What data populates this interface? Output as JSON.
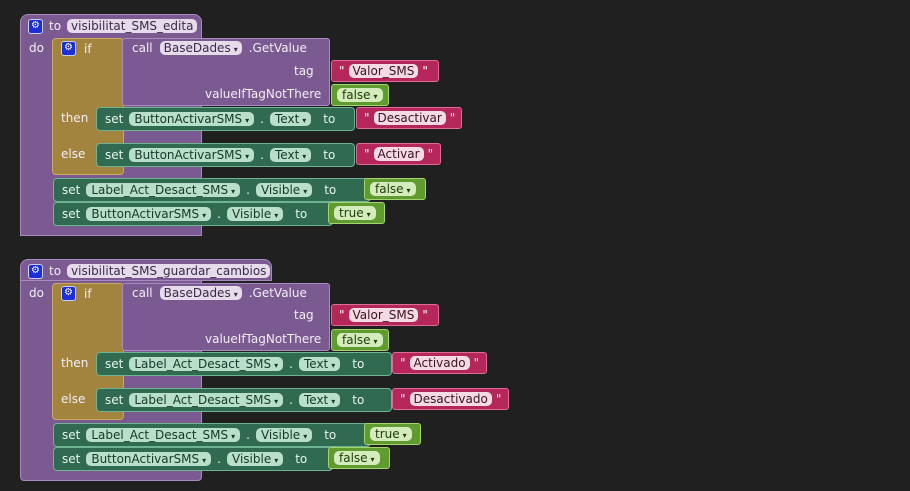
{
  "procedures": [
    {
      "to_label": "to",
      "name": "visibilitat_SMS_edita",
      "do_label": "do",
      "if_block": {
        "if_label": "if",
        "then_label": "then",
        "else_label": "else",
        "condition": {
          "call_label": "call",
          "component": "BaseDades",
          "method": ".GetValue",
          "tag_label": "tag",
          "tag_value": "Valor_SMS",
          "valueIfTagNotThere_label": "valueIfTagNotThere",
          "valueIfTagNotThere_value": "false"
        },
        "then_set": {
          "set_label": "set",
          "component": "ButtonActivarSMS",
          "property": "Text",
          "to_label": "to",
          "value": "Desactivar"
        },
        "else_set": {
          "set_label": "set",
          "component": "ButtonActivarSMS",
          "property": "Text",
          "to_label": "to",
          "value": "Activar"
        }
      },
      "sets": [
        {
          "set_label": "set",
          "component": "Label_Act_Desact_SMS",
          "property": "Visible",
          "to_label": "to",
          "value": "false"
        },
        {
          "set_label": "set",
          "component": "ButtonActivarSMS",
          "property": "Visible",
          "to_label": "to",
          "value": "true"
        }
      ]
    },
    {
      "to_label": "to",
      "name": "visibilitat_SMS_guardar_cambios",
      "do_label": "do",
      "if_block": {
        "if_label": "if",
        "then_label": "then",
        "else_label": "else",
        "condition": {
          "call_label": "call",
          "component": "BaseDades",
          "method": ".GetValue",
          "tag_label": "tag",
          "tag_value": "Valor_SMS",
          "valueIfTagNotThere_label": "valueIfTagNotThere",
          "valueIfTagNotThere_value": "false"
        },
        "then_set": {
          "set_label": "set",
          "component": "Label_Act_Desact_SMS",
          "property": "Text",
          "to_label": "to",
          "value": "Activado"
        },
        "else_set": {
          "set_label": "set",
          "component": "Label_Act_Desact_SMS",
          "property": "Text",
          "to_label": "to",
          "value": "Desactivado"
        }
      },
      "sets": [
        {
          "set_label": "set",
          "component": "Label_Act_Desact_SMS",
          "property": "Visible",
          "to_label": "to",
          "value": "true"
        },
        {
          "set_label": "set",
          "component": "ButtonActivarSMS",
          "property": "Visible",
          "to_label": "to",
          "value": "false"
        }
      ]
    }
  ],
  "glyphs": {
    "dot": ".",
    "caret": "▾",
    "quote": "\"",
    "gear": "⚙"
  },
  "colors": {
    "workspace_bg": "#202020",
    "procedure": "#7b5a91",
    "control": "#a2843f",
    "setter": "#2f6a51",
    "text": "#b5275a",
    "logic": "#5f9b2f",
    "gear_blue": "#1c2fd6"
  }
}
